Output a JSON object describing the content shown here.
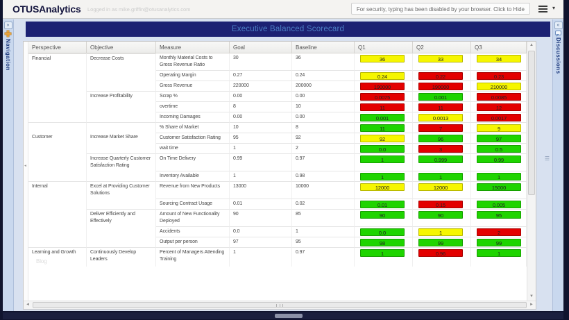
{
  "header": {
    "brand": "OTUSAnalytics",
    "logged_in": "Logged in as mike.griffin@otusanalytics.com",
    "security_notice": "For security, typing has been disabled by your browser. Click to Hide"
  },
  "left_rail": {
    "toggle_glyph": "»",
    "label": "Navigation"
  },
  "right_rail": {
    "toggle_glyph": "«",
    "label": "Discussions"
  },
  "title_bar": {
    "title": "Executive Balanced Scorecard",
    "bg_color": "#1c2173",
    "text_color": "#4c7fc4"
  },
  "icons": {
    "up": "▲",
    "down": "▼",
    "left": "◄",
    "right": "►",
    "menu_caret": "▾"
  },
  "watermark": "Blog",
  "table": {
    "columns": [
      "Perspective",
      "Objective",
      "Measure",
      "Goal",
      "Baseline",
      "Q1",
      "Q2",
      "Q3"
    ],
    "status_colors": {
      "green": "#1fd400",
      "yellow": "#f6f600",
      "red": "#e30000"
    },
    "rows": [
      {
        "p": "Financial",
        "new_p": true,
        "o": "Decrease Costs",
        "new_o": true,
        "m": "Monthly Material Costs to Gross Revenue Ratio",
        "goal": "30",
        "base": "36",
        "q1": [
          "36",
          "yellow"
        ],
        "q2": [
          "33",
          "yellow"
        ],
        "q3": [
          "34",
          "yellow"
        ]
      },
      {
        "p": "",
        "new_p": false,
        "o": "",
        "new_o": false,
        "m": "Operating Margin",
        "goal": "0.27",
        "base": "0.24",
        "q1": [
          "0.24",
          "yellow"
        ],
        "q2": [
          "0.22",
          "red"
        ],
        "q3": [
          "0.23",
          "red"
        ]
      },
      {
        "p": "",
        "new_p": false,
        "o": "",
        "new_o": false,
        "m": "Gross Revenue",
        "goal": "220000",
        "base": "200000",
        "q1": [
          "190000",
          "red"
        ],
        "q2": [
          "190000",
          "red"
        ],
        "q3": [
          "210000",
          "yellow"
        ]
      },
      {
        "p": "",
        "new_p": false,
        "o": "Increase Profitability",
        "new_o": true,
        "m": "Scrap %",
        "goal": "0.00",
        "base": "0.00",
        "q1": [
          "0.0075",
          "red"
        ],
        "q2": [
          "0.001",
          "green"
        ],
        "q3": [
          "0.0085",
          "red"
        ]
      },
      {
        "p": "",
        "new_p": false,
        "o": "",
        "new_o": false,
        "m": "overtime",
        "goal": "8",
        "base": "10",
        "q1": [
          "11",
          "red"
        ],
        "q2": [
          "11",
          "red"
        ],
        "q3": [
          "12",
          "red"
        ]
      },
      {
        "p": "",
        "new_p": false,
        "o": "",
        "new_o": false,
        "m": "Incoming Damages",
        "goal": "0.00",
        "base": "0.00",
        "q1": [
          "0.001",
          "green"
        ],
        "q2": [
          "0.0013",
          "yellow"
        ],
        "q3": [
          "0.0017",
          "red"
        ]
      },
      {
        "p": "",
        "new_p": true,
        "o": "",
        "new_o": true,
        "m": "% Share of Market",
        "goal": "10",
        "base": "8",
        "q1": [
          "11",
          "green"
        ],
        "q2": [
          "7",
          "red"
        ],
        "q3": [
          "9",
          "yellow"
        ]
      },
      {
        "p": "Customer",
        "new_p": false,
        "o": "Increase Market Share",
        "new_o": false,
        "m": "Customer Satisfaction Rating",
        "goal": "95",
        "base": "92",
        "q1": [
          "92",
          "yellow"
        ],
        "q2": [
          "96",
          "green"
        ],
        "q3": [
          "97",
          "green"
        ]
      },
      {
        "p": "",
        "new_p": false,
        "o": "",
        "new_o": false,
        "m": "wait time",
        "goal": "1",
        "base": "2",
        "q1": [
          "0.0",
          "green"
        ],
        "q2": [
          "3",
          "red"
        ],
        "q3": [
          "0.5",
          "green"
        ]
      },
      {
        "p": "",
        "new_p": false,
        "o": "Increase Quarterly Customer Satisfaction Rating",
        "new_o": true,
        "m": "On Time Delivery",
        "goal": "0.99",
        "base": "0.97",
        "q1": [
          "1",
          "green"
        ],
        "q2": [
          "0.999",
          "green"
        ],
        "q3": [
          "0.99",
          "green"
        ]
      },
      {
        "p": "",
        "new_p": false,
        "o": "",
        "new_o": false,
        "m": "Inventory Available",
        "goal": "1",
        "base": "0.98",
        "q1": [
          "1",
          "green"
        ],
        "q2": [
          "1",
          "green"
        ],
        "q3": [
          "1",
          "green"
        ]
      },
      {
        "p": "Internal",
        "new_p": true,
        "o": "Excel at Providing Customer Solutions",
        "new_o": true,
        "m": "Revenue from New Products",
        "goal": "13000",
        "base": "10000",
        "q1": [
          "12000",
          "yellow"
        ],
        "q2": [
          "12000",
          "yellow"
        ],
        "q3": [
          "15000",
          "green"
        ]
      },
      {
        "p": "",
        "new_p": false,
        "o": "",
        "new_o": false,
        "m": "Sourcing Contract Usage",
        "goal": "0.01",
        "base": "0.02",
        "q1": [
          "0.01",
          "green"
        ],
        "q2": [
          "0.15",
          "red"
        ],
        "q3": [
          "0.005",
          "green"
        ]
      },
      {
        "p": "",
        "new_p": false,
        "o": "Deliver Efficiently and Effectively",
        "new_o": true,
        "m": "Amount of New Functionality Deployed",
        "goal": "90",
        "base": "85",
        "q1": [
          "90",
          "green"
        ],
        "q2": [
          "90",
          "green"
        ],
        "q3": [
          "95",
          "green"
        ]
      },
      {
        "p": "",
        "new_p": false,
        "o": "",
        "new_o": false,
        "m": "Accidents",
        "goal": "0.0",
        "base": "1",
        "q1": [
          "0.0",
          "green"
        ],
        "q2": [
          "1",
          "yellow"
        ],
        "q3": [
          "2",
          "red"
        ]
      },
      {
        "p": "",
        "new_p": false,
        "o": "",
        "new_o": false,
        "m": "Output per person",
        "goal": "97",
        "base": "95",
        "q1": [
          "98",
          "green"
        ],
        "q2": [
          "99",
          "green"
        ],
        "q3": [
          "99",
          "green"
        ]
      },
      {
        "p": "Learning and Growth",
        "new_p": true,
        "o": "Continuously Develop Leaders",
        "new_o": true,
        "m": "Percent of Managers Attending Training",
        "goal": "1",
        "base": "0.97",
        "q1": [
          "1",
          "green"
        ],
        "q2": [
          "0.96",
          "red"
        ],
        "q3": [
          "1",
          "green"
        ]
      }
    ]
  }
}
